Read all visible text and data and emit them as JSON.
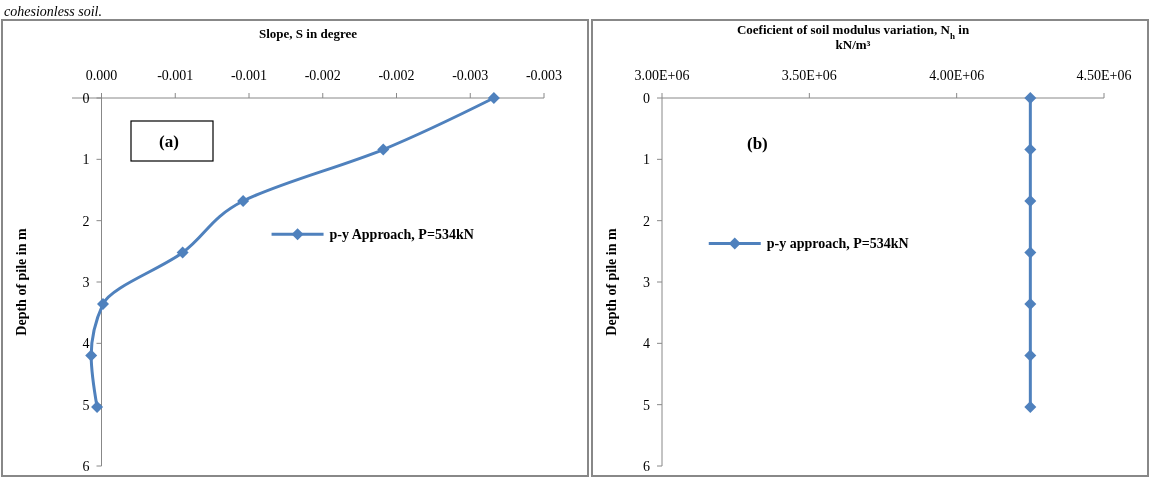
{
  "chart_data": [
    {
      "type": "line",
      "xlabel": "Slope, S  in degree",
      "ylabel": "Depth of pile in m",
      "xlim": [
        0.0002,
        -0.003
      ],
      "ylim": [
        6,
        0
      ],
      "xticks": [
        {
          "value": 0,
          "label": "0.000"
        },
        {
          "value": -0.0005,
          "label": "-0.001"
        },
        {
          "value": -0.001,
          "label": "-0.001"
        },
        {
          "value": -0.0015,
          "label": "-0.002"
        },
        {
          "value": -0.002,
          "label": "-0.002"
        },
        {
          "value": -0.0025,
          "label": "-0.003"
        },
        {
          "value": -0.003,
          "label": "-0.003"
        }
      ],
      "yticks": [
        0,
        1,
        2,
        3,
        4,
        5,
        6
      ],
      "legend": "center",
      "marker": "diamond",
      "line_style": "solid",
      "series": [
        {
          "name": "p-y Approach, P=534kN",
          "color": "#4f81bd",
          "x": [
            -0.00266,
            -0.00191,
            -0.00096,
            -0.00055,
            -1e-05,
            7e-05,
            3e-05
          ],
          "values": [
            0,
            0.84,
            1.68,
            2.52,
            3.36,
            4.2,
            5.04
          ]
        }
      ],
      "annotations": [
        "cohesionless soil.",
        "(a)"
      ]
    },
    {
      "type": "line",
      "xlabel": "Coeficient of soil modulus variation, N$_{h}$ in kN/m³",
      "ylabel": "Depth of pile in m",
      "xlim": [
        3000000,
        4500000
      ],
      "ylim": [
        6,
        0
      ],
      "xticks": [
        {
          "value": 3000000,
          "label": "3.00E+06"
        },
        {
          "value": 3500000,
          "label": "3.50E+06"
        },
        {
          "value": 4000000,
          "label": "4.00E+06"
        },
        {
          "value": 4500000,
          "label": "4.50E+06"
        }
      ],
      "yticks": [
        0,
        1,
        2,
        3,
        4,
        5,
        6
      ],
      "legend": "center",
      "marker": "diamond",
      "line_style": "solid",
      "series": [
        {
          "name": "p-y approach, P=534kN",
          "color": "#4f81bd",
          "x": [
            4250000,
            4250000,
            4250000,
            4250000,
            4250000,
            4250000,
            4250000
          ],
          "values": [
            0,
            0.84,
            1.68,
            2.52,
            3.36,
            4.2,
            5.04
          ]
        }
      ],
      "annotations": [
        "(b)"
      ]
    }
  ]
}
